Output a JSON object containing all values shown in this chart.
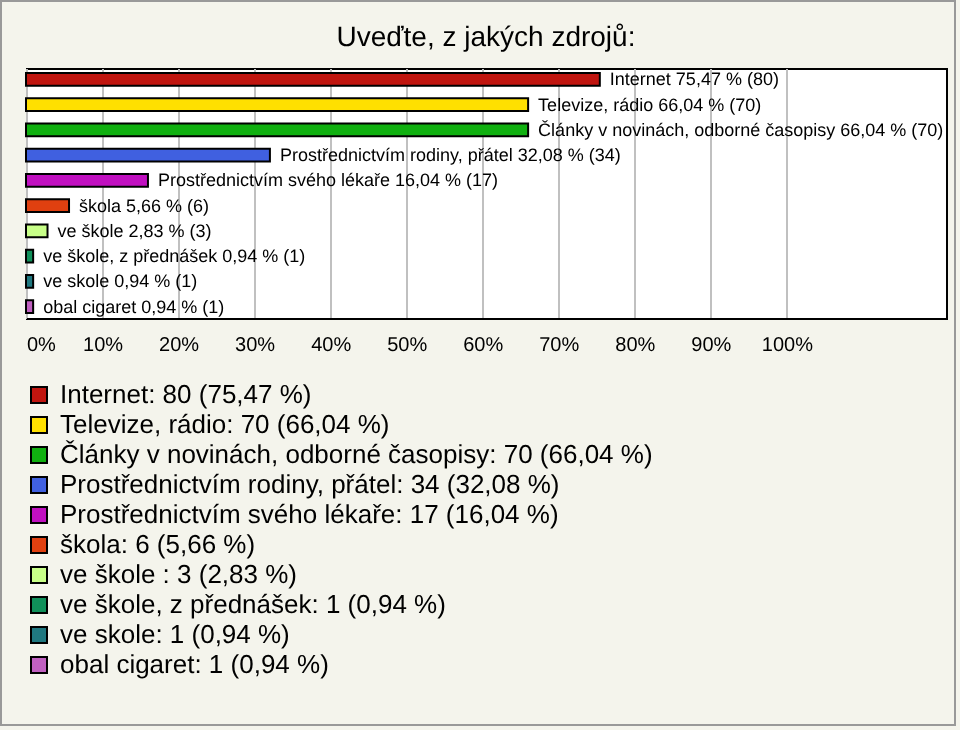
{
  "chart_data": {
    "type": "bar",
    "orientation": "horizontal",
    "title": "Uveďte, z jakých zdrojů:",
    "categories": [
      null,
      null,
      null,
      null,
      null,
      null,
      null,
      null,
      null,
      null
    ],
    "series": [
      {
        "name": "Internet: 80 (75,47 %)",
        "color": "#c0150f",
        "values": [
          75.47,
          null,
          null,
          null,
          null,
          null,
          null,
          null,
          null,
          null
        ],
        "value_labels": [
          "Internet 75,47 % (80)",
          null,
          null,
          null,
          null,
          null,
          null,
          null,
          null,
          null
        ]
      },
      {
        "name": "Televize, rádio: 70 (66,04 %)",
        "color": "#ffe000",
        "values": [
          null,
          66.04,
          null,
          null,
          null,
          null,
          null,
          null,
          null,
          null
        ],
        "value_labels": [
          null,
          "Televize, rádio 66,04 % (70)",
          null,
          null,
          null,
          null,
          null,
          null,
          null,
          null
        ]
      },
      {
        "name": "Články v novinách, odborné časopisy: 70 (66,04 %)",
        "color": "#10b010",
        "values": [
          null,
          null,
          66.04,
          null,
          null,
          null,
          null,
          null,
          null,
          null
        ],
        "value_labels": [
          null,
          null,
          "Články v novinách, odborné časopisy 66,04 % (70)",
          null,
          null,
          null,
          null,
          null,
          null,
          null
        ]
      },
      {
        "name": "Prostřednictvím rodiny, přátel: 34 (32,08 %)",
        "color": "#4060e0",
        "values": [
          null,
          null,
          null,
          32.08,
          null,
          null,
          null,
          null,
          null,
          null
        ],
        "value_labels": [
          null,
          null,
          null,
          "Prostřednictvím rodiny, přátel 32,08 % (34)",
          null,
          null,
          null,
          null,
          null,
          null
        ]
      },
      {
        "name": "Prostřednictvím svého lékaře: 17 (16,04 %)",
        "color": "#c010c0",
        "values": [
          null,
          null,
          null,
          null,
          16.04,
          null,
          null,
          null,
          null,
          null
        ],
        "value_labels": [
          null,
          null,
          null,
          null,
          "Prostřednictvím svého lékaře 16,04 % (17)",
          null,
          null,
          null,
          null,
          null
        ]
      },
      {
        "name": "škola: 6 (5,66 %)",
        "color": "#e04010",
        "values": [
          null,
          null,
          null,
          null,
          null,
          5.66,
          null,
          null,
          null,
          null
        ],
        "value_labels": [
          null,
          null,
          null,
          null,
          null,
          "škola 5,66 % (6)",
          null,
          null,
          null,
          null
        ]
      },
      {
        "name": "ve škole : 3 (2,83 %)",
        "color": "#c8ff88",
        "values": [
          null,
          null,
          null,
          null,
          null,
          null,
          2.83,
          null,
          null,
          null
        ],
        "value_labels": [
          null,
          null,
          null,
          null,
          null,
          null,
          "ve škole  2,83 % (3)",
          null,
          null,
          null
        ]
      },
      {
        "name": "ve škole, z přednášek: 1 (0,94 %)",
        "color": "#10905a",
        "values": [
          null,
          null,
          null,
          null,
          null,
          null,
          null,
          0.94,
          null,
          null
        ],
        "value_labels": [
          null,
          null,
          null,
          null,
          null,
          null,
          null,
          "ve škole, z přednášek 0,94 % (1)",
          null,
          null
        ]
      },
      {
        "name": "ve skole: 1 (0,94 %)",
        "color": "#207880",
        "values": [
          null,
          null,
          null,
          null,
          null,
          null,
          null,
          null,
          0.94,
          null
        ],
        "value_labels": [
          null,
          null,
          null,
          null,
          null,
          null,
          null,
          null,
          "ve skole 0,94 % (1)",
          null
        ]
      },
      {
        "name": "obal cigaret: 1 (0,94 %)",
        "color": "#c060c0",
        "values": [
          null,
          null,
          null,
          null,
          null,
          null,
          null,
          null,
          null,
          0.94
        ],
        "value_labels": [
          null,
          null,
          null,
          null,
          null,
          null,
          null,
          null,
          null,
          "obal cigaret 0,94 % (1)"
        ]
      }
    ],
    "xlim": [
      0,
      121
    ],
    "xticks": [
      {
        "value": 0,
        "label": "0%"
      },
      {
        "value": 10,
        "label": "10%"
      },
      {
        "value": 20,
        "label": "20%"
      },
      {
        "value": 30,
        "label": "30%"
      },
      {
        "value": 40,
        "label": "40%"
      },
      {
        "value": 50,
        "label": "50%"
      },
      {
        "value": 60,
        "label": "60%"
      },
      {
        "value": 70,
        "label": "70%"
      },
      {
        "value": 80,
        "label": "80%"
      },
      {
        "value": 90,
        "label": "90%"
      },
      {
        "value": 100,
        "label": "100%"
      }
    ],
    "grid": "x",
    "legend": "bottom",
    "tick_labels": "x"
  }
}
